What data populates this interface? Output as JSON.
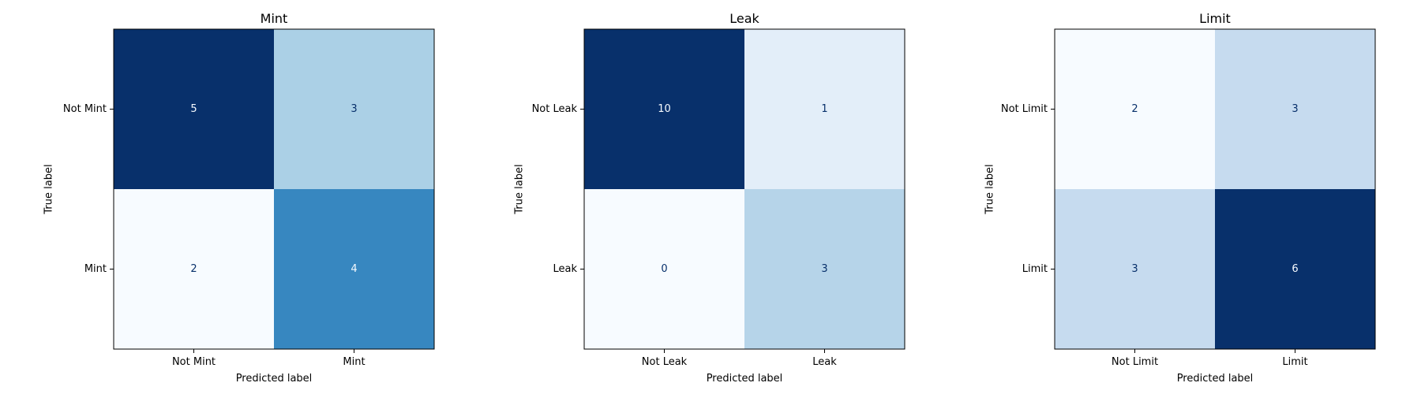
{
  "chart_data": [
    {
      "type": "heatmap",
      "title": "Mint",
      "xlabel": "Predicted label",
      "ylabel": "True label",
      "x_tick_labels": [
        "Not Mint",
        "Mint"
      ],
      "y_tick_labels": [
        "Not Mint",
        "Mint"
      ],
      "matrix": [
        [
          5,
          3
        ],
        [
          2,
          4
        ]
      ],
      "colormap": "Blues",
      "colorbar": false
    },
    {
      "type": "heatmap",
      "title": "Leak",
      "xlabel": "Predicted label",
      "ylabel": "True label",
      "x_tick_labels": [
        "Not Leak",
        "Leak"
      ],
      "y_tick_labels": [
        "Not Leak",
        "Leak"
      ],
      "matrix": [
        [
          10,
          1
        ],
        [
          0,
          3
        ]
      ],
      "colormap": "Blues",
      "colorbar": false
    },
    {
      "type": "heatmap",
      "title": "Limit",
      "xlabel": "Predicted label",
      "ylabel": "True label",
      "x_tick_labels": [
        "Not Limit",
        "Limit"
      ],
      "y_tick_labels": [
        "Not Limit",
        "Limit"
      ],
      "matrix": [
        [
          2,
          3
        ],
        [
          3,
          6
        ]
      ],
      "colormap": "Blues",
      "colorbar": false
    }
  ],
  "colors": {
    "blues_light": "#f7fbff",
    "blues_dark": "#08306b",
    "text_on_dark": "#f7fbff",
    "text_on_light": "#08306b"
  }
}
